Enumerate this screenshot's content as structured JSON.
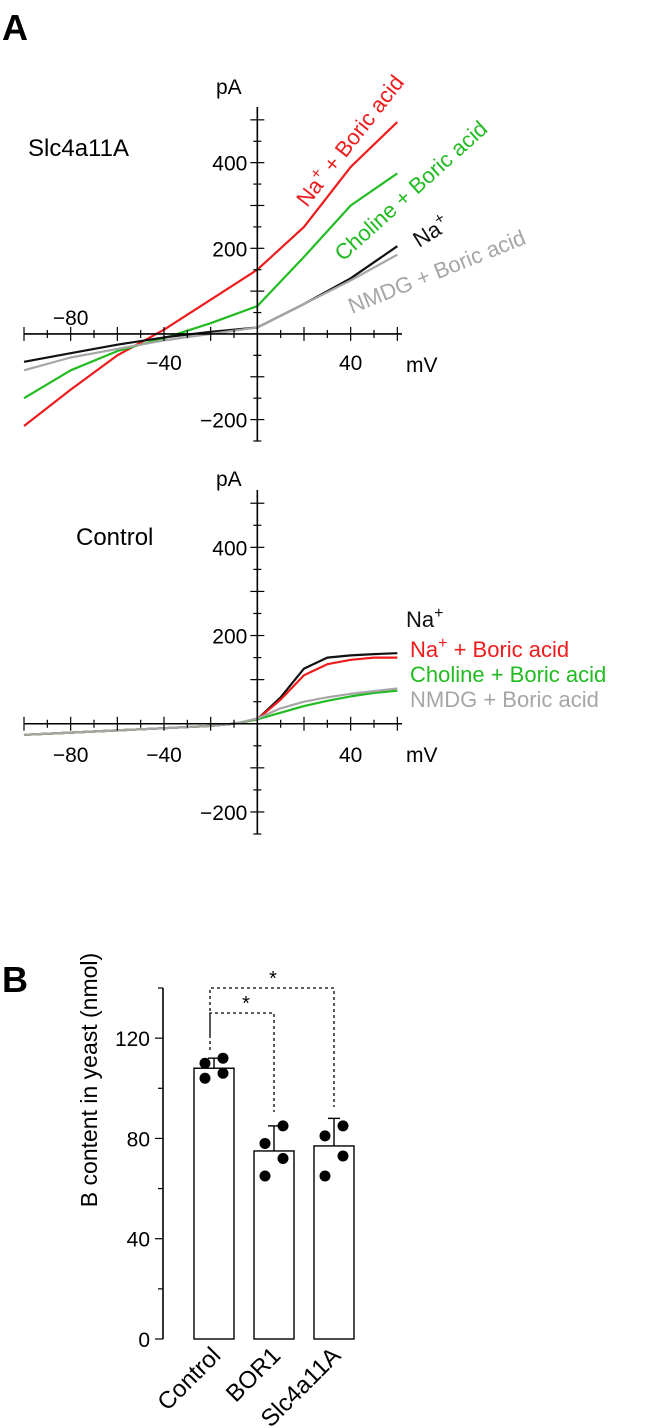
{
  "figure": {
    "panel_a_letter": "A",
    "panel_b_letter": "B"
  },
  "chart_data": [
    {
      "type": "line",
      "panel_title": "Slc4a11A",
      "xlabel": "mV",
      "ylabel": "pA",
      "xlim": [
        -100,
        62
      ],
      "ylim": [
        -250,
        530
      ],
      "x_ticks": [
        -80,
        -40,
        40
      ],
      "y_ticks": [
        -200,
        200,
        400
      ],
      "series": [
        {
          "name": "Na+ + Boric acid",
          "color": "#ee1c1c",
          "x": [
            -100,
            -80,
            -60,
            -40,
            -20,
            0,
            20,
            40,
            60
          ],
          "y": [
            -215,
            -130,
            -50,
            10,
            80,
            150,
            250,
            390,
            495
          ]
        },
        {
          "name": "Choline + Boric acid",
          "color": "#22bb22",
          "x": [
            -100,
            -80,
            -60,
            -40,
            -20,
            0,
            20,
            40,
            60
          ],
          "y": [
            -150,
            -85,
            -40,
            -10,
            25,
            65,
            180,
            300,
            375
          ]
        },
        {
          "name": "Na+",
          "color": "#111111",
          "x": [
            -100,
            -80,
            -60,
            -40,
            -20,
            0,
            20,
            40,
            60
          ],
          "y": [
            -65,
            -45,
            -25,
            -8,
            5,
            15,
            70,
            130,
            205
          ]
        },
        {
          "name": "NMDG + Boric acid",
          "color": "#a6a6a6",
          "x": [
            -100,
            -80,
            -60,
            -40,
            -20,
            0,
            20,
            40,
            60
          ],
          "y": [
            -85,
            -55,
            -35,
            -15,
            0,
            15,
            70,
            125,
            185
          ]
        }
      ],
      "legend_labels": {
        "na_boric": {
          "ion": "Na",
          "charge": "+",
          "rest": " + Boric acid"
        },
        "choline_boric": "Choline + Boric acid",
        "na": {
          "ion": "Na",
          "charge": "+"
        },
        "nmdg_boric": "NMDG + Boric acid"
      }
    },
    {
      "type": "line",
      "panel_title": "Control",
      "xlabel": "mV",
      "ylabel": "pA",
      "xlim": [
        -100,
        62
      ],
      "ylim": [
        -250,
        530
      ],
      "x_ticks": [
        -80,
        -40,
        40
      ],
      "y_ticks": [
        -200,
        200,
        400
      ],
      "series": [
        {
          "name": "Na+",
          "color": "#111111",
          "x": [
            -100,
            -80,
            -60,
            -40,
            -20,
            -10,
            0,
            10,
            20,
            30,
            40,
            50,
            60
          ],
          "y": [
            -25,
            -20,
            -15,
            -10,
            -5,
            0,
            10,
            60,
            125,
            150,
            155,
            158,
            160
          ]
        },
        {
          "name": "Na+ + Boric acid",
          "color": "#ee1c1c",
          "x": [
            -100,
            -80,
            -60,
            -40,
            -20,
            -10,
            0,
            10,
            20,
            30,
            40,
            50,
            60
          ],
          "y": [
            -25,
            -20,
            -15,
            -10,
            -5,
            0,
            10,
            55,
            110,
            135,
            145,
            150,
            150
          ]
        },
        {
          "name": "Choline + Boric acid",
          "color": "#22bb22",
          "x": [
            -100,
            -80,
            -60,
            -40,
            -20,
            -10,
            0,
            10,
            20,
            30,
            40,
            50,
            60
          ],
          "y": [
            -25,
            -20,
            -15,
            -10,
            -5,
            0,
            10,
            25,
            40,
            52,
            62,
            70,
            75
          ]
        },
        {
          "name": "NMDG + Boric acid",
          "color": "#a6a6a6",
          "x": [
            -100,
            -80,
            -60,
            -40,
            -20,
            -10,
            0,
            10,
            20,
            30,
            40,
            50,
            60
          ],
          "y": [
            -25,
            -20,
            -15,
            -10,
            -5,
            0,
            12,
            35,
            50,
            60,
            68,
            74,
            80
          ]
        }
      ],
      "legend_labels": {
        "na": {
          "ion": "Na",
          "charge": "+"
        },
        "na_boric": {
          "ion": "Na",
          "charge": "+",
          "rest": " + Boric acid"
        },
        "choline_boric": "Choline + Boric acid",
        "nmdg_boric": "NMDG + Boric acid"
      }
    },
    {
      "type": "bar",
      "categories": [
        "Control",
        "BOR1",
        "Slc4a11A"
      ],
      "values": [
        108,
        75,
        77
      ],
      "errors": [
        4,
        10,
        11
      ],
      "points": [
        [
          104,
          106,
          110,
          112
        ],
        [
          65,
          72,
          78,
          85
        ],
        [
          65,
          73,
          81,
          85
        ]
      ],
      "ylabel": "B content in yeast (nmol)",
      "ylim": [
        0,
        140
      ],
      "y_ticks": [
        0,
        40,
        80,
        120
      ],
      "significance": [
        {
          "from": "Control",
          "to": "BOR1",
          "label": "*"
        },
        {
          "from": "Control",
          "to": "Slc4a11A",
          "label": "*"
        }
      ]
    }
  ]
}
